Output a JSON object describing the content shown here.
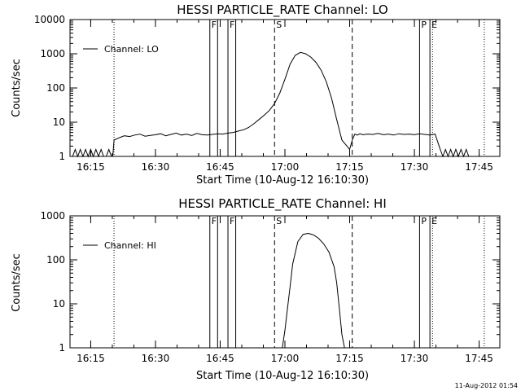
{
  "footer": {
    "timestamp": "11-Aug-2012 01:54"
  },
  "chart_data": [
    {
      "type": "line",
      "title": "HESSI PARTICLE_RATE Channel: LO",
      "xlabel": "Start Time (10-Aug-12 16:10:30)",
      "ylabel": "Counts/sec",
      "yscale": "log",
      "ylim": [
        1,
        10000
      ],
      "xlim_minutes": [
        16.17,
        17.83
      ],
      "x_ticks": [
        "16:15",
        "16:30",
        "16:45",
        "17:00",
        "17:15",
        "17:30",
        "17:45"
      ],
      "x_tick_minutes": [
        16.25,
        16.5,
        16.75,
        17.0,
        17.25,
        17.5,
        17.75
      ],
      "y_ticks": [
        "1",
        "10",
        "100",
        "1000",
        "10000"
      ],
      "y_tick_values": [
        1,
        10,
        100,
        1000,
        10000
      ],
      "legend": {
        "position": "top-left",
        "entries": [
          "Channel: LO"
        ]
      },
      "flags": [
        {
          "label": "F",
          "time": 16.71
        },
        {
          "label": "F",
          "time": 16.78
        },
        {
          "label": "S",
          "time": 16.96
        },
        {
          "label": "P",
          "time": 17.52
        },
        {
          "label": "E",
          "time": 17.56
        }
      ],
      "solid_lines": [
        16.71,
        16.74,
        16.78,
        16.81,
        17.52,
        17.56
      ],
      "dashed_lines": [
        16.96,
        17.26
      ],
      "dotted_lines": [
        16.34,
        17.57,
        17.77
      ],
      "series": [
        {
          "x": [
            16.17,
            16.18,
            16.19,
            16.2,
            16.21,
            16.22,
            16.23,
            16.24,
            16.25,
            16.26,
            16.27,
            16.28,
            16.29,
            16.3,
            16.31,
            16.32,
            16.33,
            16.335,
            16.34,
            16.36,
            16.38,
            16.4,
            16.42,
            16.44,
            16.46,
            16.48,
            16.5,
            16.52,
            16.54,
            16.56,
            16.58,
            16.6,
            16.62,
            16.64,
            16.66,
            16.68,
            16.7,
            16.72,
            16.74,
            16.76,
            16.78,
            16.8,
            16.82,
            16.84,
            16.86,
            16.88,
            16.9,
            16.92,
            16.94,
            16.96,
            16.98,
            17.0,
            17.02,
            17.04,
            17.06,
            17.08,
            17.1,
            17.12,
            17.14,
            17.16,
            17.18,
            17.2,
            17.22,
            17.24,
            17.25,
            17.26,
            17.27,
            17.28,
            17.29,
            17.3,
            17.32,
            17.34,
            17.36,
            17.38,
            17.4,
            17.42,
            17.44,
            17.46,
            17.48,
            17.5,
            17.52,
            17.54,
            17.56,
            17.58,
            17.6,
            17.61,
            17.62,
            17.63,
            17.64,
            17.65,
            17.66,
            17.67,
            17.68,
            17.69,
            17.7,
            17.71,
            17.72,
            17.73,
            17.74,
            17.75,
            17.76,
            17.77,
            17.78
          ],
          "y": [
            1,
            1,
            1.6,
            1,
            1.6,
            1,
            1.6,
            1,
            1.6,
            1,
            1.6,
            1,
            1.6,
            1,
            1,
            1.6,
            1,
            1,
            3,
            3.5,
            4,
            3.8,
            4.2,
            4.5,
            3.9,
            4.1,
            4.3,
            4.6,
            4.0,
            4.4,
            4.8,
            4.2,
            4.5,
            4.1,
            4.7,
            4.3,
            4.2,
            4.4,
            4.6,
            4.5,
            4.8,
            5,
            5.5,
            6,
            7,
            9,
            12,
            16,
            22,
            35,
            70,
            180,
            500,
            900,
            1100,
            1000,
            800,
            560,
            330,
            150,
            50,
            12,
            3,
            2,
            1.6,
            3,
            4.5,
            4.2,
            4.6,
            4.3,
            4.5,
            4.4,
            4.7,
            4.3,
            4.5,
            4.2,
            4.6,
            4.4,
            4.5,
            4.3,
            4.6,
            4.4,
            4.2,
            4.5,
            1.6,
            1,
            1.6,
            1,
            1.6,
            1,
            1.6,
            1,
            1.6,
            1,
            1.6,
            1,
            1,
            1,
            1,
            1,
            1,
            1,
            1
          ]
        }
      ]
    },
    {
      "type": "line",
      "title": "HESSI PARTICLE_RATE Channel: HI",
      "xlabel": "Start Time (10-Aug-12 16:10:30)",
      "ylabel": "Counts/sec",
      "yscale": "log",
      "ylim": [
        1,
        1000
      ],
      "xlim_minutes": [
        16.17,
        17.83
      ],
      "x_ticks": [
        "16:15",
        "16:30",
        "16:45",
        "17:00",
        "17:15",
        "17:30",
        "17:45"
      ],
      "x_tick_minutes": [
        16.25,
        16.5,
        16.75,
        17.0,
        17.25,
        17.5,
        17.75
      ],
      "y_ticks": [
        "1",
        "10",
        "100",
        "1000"
      ],
      "y_tick_values": [
        1,
        10,
        100,
        1000
      ],
      "legend": {
        "position": "top-left",
        "entries": [
          "Channel: HI"
        ]
      },
      "flags": [
        {
          "label": "F",
          "time": 16.71
        },
        {
          "label": "F",
          "time": 16.78
        },
        {
          "label": "S",
          "time": 16.96
        },
        {
          "label": "P",
          "time": 17.52
        },
        {
          "label": "E",
          "time": 17.56
        }
      ],
      "solid_lines": [
        16.71,
        16.74,
        16.78,
        16.81,
        17.52,
        17.56
      ],
      "dashed_lines": [
        16.96,
        17.26
      ],
      "dotted_lines": [
        16.34,
        17.57,
        17.77
      ],
      "series": [
        {
          "x": [
            16.99,
            17.0,
            17.01,
            17.02,
            17.03,
            17.05,
            17.07,
            17.09,
            17.11,
            17.13,
            17.15,
            17.17,
            17.19,
            17.2,
            17.21,
            17.22,
            17.23
          ],
          "y": [
            1,
            2.5,
            8,
            25,
            80,
            260,
            380,
            400,
            370,
            310,
            230,
            150,
            70,
            30,
            8,
            2,
            1
          ]
        }
      ]
    }
  ]
}
